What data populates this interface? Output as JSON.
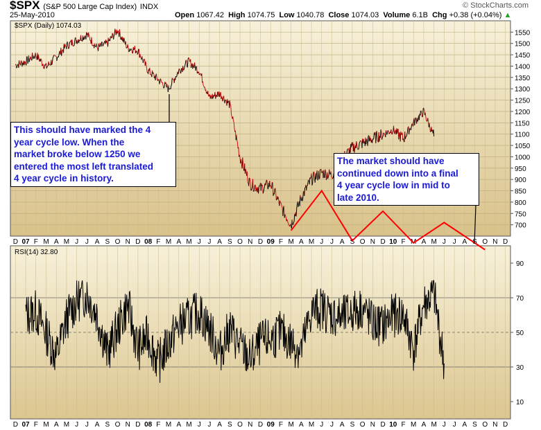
{
  "header": {
    "symbol": "$SPX",
    "description": "(S&P 500 Large Cap Index)",
    "exchange": "INDX",
    "date": "25-May-2010",
    "open_label": "Open",
    "open": "1067.42",
    "high_label": "High",
    "high": "1074.75",
    "low_label": "Low",
    "low": "1040.78",
    "close_label": "Close",
    "close": "1074.03",
    "volume_label": "Volume",
    "volume": "6.1B",
    "chg_label": "Chg",
    "chg": "+0.38 (+0.04%)",
    "brand": "© StockCharts.com"
  },
  "annotations": {
    "left_callout": [
      "This should have marked the 4",
      "year cycle low. When the",
      "market broke below 1250 we",
      "entered the most left translated",
      "4 year cycle in history."
    ],
    "right_callout": [
      "The market should have",
      "continued down into a final",
      "4 year cycle low in mid to",
      "late 2010."
    ]
  },
  "colors": {
    "panel_bg_top": "#f6f0d8",
    "panel_bg_bottom": "#dcc690",
    "price_line": "#000000",
    "down_color": "#d01010",
    "cycle_line": "#ff0000",
    "callout_text": "#1b1bd6"
  },
  "chart_data": [
    {
      "type": "line",
      "title": "$SPX (Daily) 1074.03",
      "series_name": "$SPX (Daily)",
      "last_value": "1074.03",
      "ylim": [
        650,
        1600
      ],
      "y_ticks": [
        1550,
        1500,
        1450,
        1400,
        1350,
        1300,
        1250,
        1200,
        1150,
        1100,
        1050,
        1000,
        950,
        900,
        850,
        800,
        750,
        700
      ],
      "x_tick_labels": [
        "D",
        "07",
        "F",
        "M",
        "A",
        "M",
        "J",
        "J",
        "A",
        "S",
        "O",
        "N",
        "D",
        "08",
        "F",
        "M",
        "A",
        "M",
        "J",
        "J",
        "A",
        "S",
        "O",
        "N",
        "D",
        "09",
        "F",
        "M",
        "A",
        "M",
        "J",
        "J",
        "A",
        "S",
        "O",
        "N",
        "D",
        "10",
        "F",
        "M",
        "A",
        "M",
        "J",
        "J",
        "A",
        "S",
        "O",
        "N",
        "D"
      ],
      "x": [
        "2006-12",
        "2007-01",
        "2007-02",
        "2007-03",
        "2007-04",
        "2007-05",
        "2007-06",
        "2007-07",
        "2007-08",
        "2007-09",
        "2007-10",
        "2007-11",
        "2007-12",
        "2008-01",
        "2008-02",
        "2008-03",
        "2008-04",
        "2008-05",
        "2008-06",
        "2008-07",
        "2008-08",
        "2008-09",
        "2008-10",
        "2008-11",
        "2008-12",
        "2009-01",
        "2009-02",
        "2009-03",
        "2009-04",
        "2009-05",
        "2009-06",
        "2009-07",
        "2009-08",
        "2009-09",
        "2009-10",
        "2009-11",
        "2009-12",
        "2010-01",
        "2010-02",
        "2010-03",
        "2010-04",
        "2010-05"
      ],
      "values": [
        1405,
        1420,
        1450,
        1395,
        1440,
        1490,
        1515,
        1540,
        1480,
        1500,
        1560,
        1480,
        1470,
        1380,
        1340,
        1300,
        1380,
        1420,
        1380,
        1260,
        1280,
        1230,
        1000,
        880,
        860,
        880,
        780,
        700,
        820,
        900,
        930,
        920,
        990,
        1040,
        1060,
        1080,
        1100,
        1120,
        1080,
        1150,
        1200,
        1090
      ],
      "cycle_projection": {
        "x": [
          "2009-03",
          "2009-06",
          "2009-09",
          "2009-12",
          "2010-03",
          "2010-06",
          "2010-10"
        ],
        "values": [
          675,
          850,
          630,
          760,
          620,
          710,
          590
        ]
      }
    },
    {
      "type": "line",
      "title": "RSI(14) 32.80",
      "series_name": "RSI(14)",
      "last_value": "32.80",
      "ylim": [
        0,
        100
      ],
      "y_ticks": [
        90,
        70,
        50,
        30,
        10
      ],
      "reference_lines": [
        70,
        50,
        30
      ],
      "x_tick_labels": [
        "D",
        "07",
        "F",
        "M",
        "A",
        "M",
        "J",
        "J",
        "A",
        "S",
        "O",
        "N",
        "D",
        "08",
        "F",
        "M",
        "A",
        "M",
        "J",
        "J",
        "A",
        "S",
        "O",
        "N",
        "D",
        "09",
        "F",
        "M",
        "A",
        "M",
        "J",
        "J",
        "A",
        "S",
        "O",
        "N",
        "D",
        "10",
        "F",
        "M",
        "A",
        "M",
        "J",
        "J",
        "A",
        "S",
        "O",
        "N",
        "D"
      ],
      "values": [
        60,
        62,
        50,
        36,
        58,
        68,
        72,
        60,
        38,
        52,
        66,
        40,
        48,
        32,
        44,
        54,
        58,
        62,
        52,
        38,
        52,
        42,
        34,
        44,
        46,
        50,
        44,
        40,
        62,
        64,
        60,
        58,
        62,
        64,
        55,
        54,
        60,
        60,
        40,
        66,
        72,
        32
      ]
    }
  ]
}
